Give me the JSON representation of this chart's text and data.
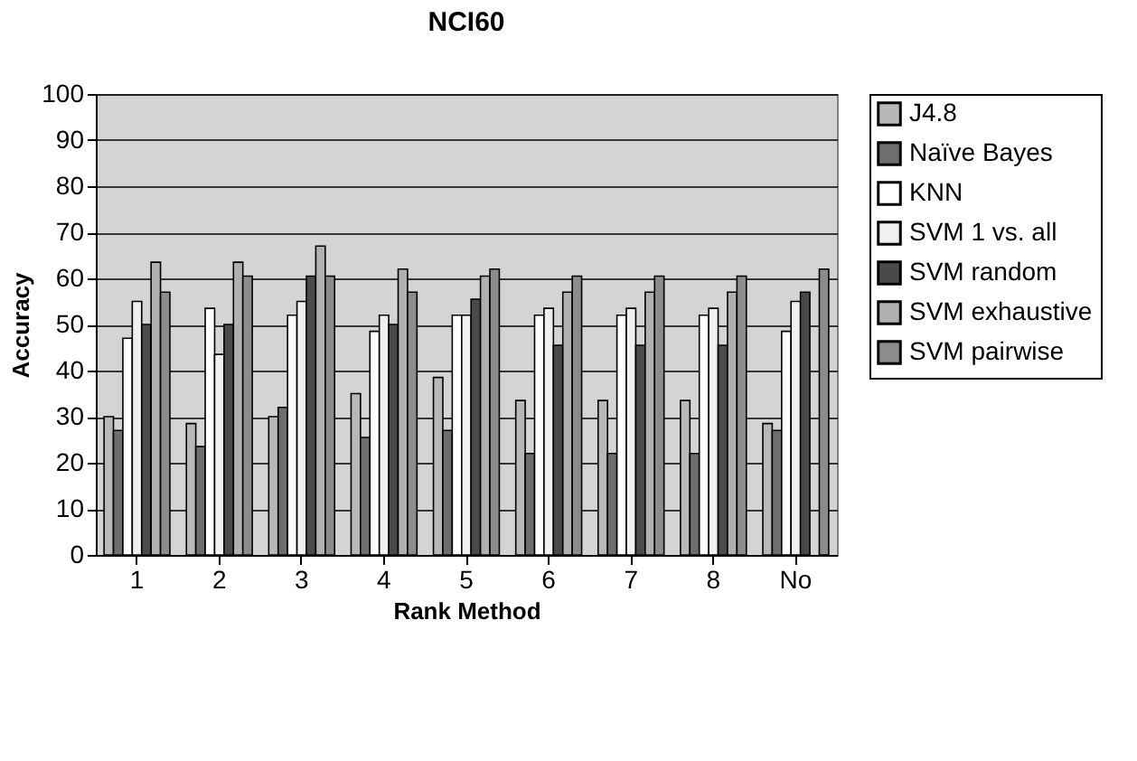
{
  "chart_data": {
    "type": "bar",
    "title": "NCI60",
    "xlabel": "Rank Method",
    "ylabel": "Accuracy",
    "categories": [
      "1",
      "2",
      "3",
      "4",
      "5",
      "6",
      "7",
      "8",
      "No"
    ],
    "series": [
      {
        "name": "J4.8",
        "color": "#b8b8b8",
        "values": [
          30,
          28.5,
          30,
          35,
          38.5,
          33.5,
          33.5,
          33.5,
          28.5
        ]
      },
      {
        "name": "Naïve Bayes",
        "color": "#6e6e6e",
        "values": [
          27,
          23.5,
          32,
          25.5,
          27,
          22,
          22,
          22,
          27
        ]
      },
      {
        "name": "KNN",
        "color": "#ffffff",
        "values": [
          47,
          53.5,
          52,
          48.5,
          52,
          52,
          52,
          52,
          48.5
        ]
      },
      {
        "name": "SVM 1 vs. all",
        "color": "#f0f0f0",
        "values": [
          55,
          43.5,
          55,
          52,
          52,
          53.5,
          53.5,
          53.5,
          55
        ]
      },
      {
        "name": "SVM random",
        "color": "#4a4a4a",
        "values": [
          50,
          50,
          60.5,
          50,
          55.5,
          45.5,
          45.5,
          45.5,
          57
        ]
      },
      {
        "name": "SVM exhaustive",
        "color": "#b0b0b0",
        "values": [
          63.5,
          63.5,
          67,
          62,
          60.5,
          57,
          57,
          57,
          null
        ]
      },
      {
        "name": "SVM pairwise",
        "color": "#8c8c8c",
        "values": [
          57,
          60.5,
          60.5,
          57,
          62,
          60.5,
          60.5,
          60.5,
          62
        ]
      }
    ],
    "ylim": [
      0,
      100
    ],
    "yticks": [
      0,
      10,
      20,
      30,
      40,
      50,
      60,
      70,
      80,
      90,
      100
    ],
    "grid": "y",
    "legend": "right"
  }
}
